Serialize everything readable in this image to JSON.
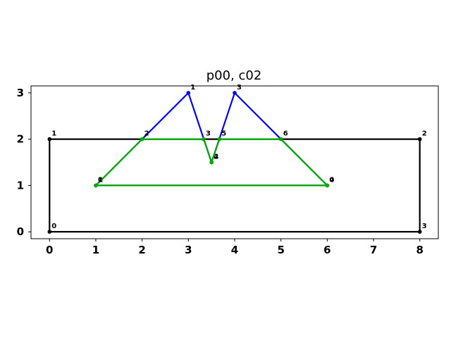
{
  "chart_data": {
    "type": "line",
    "title": "p00, c02",
    "xlabel": "",
    "ylabel": "",
    "xlim": [
      -0.4,
      8.4
    ],
    "ylim": [
      -0.15,
      3.15
    ],
    "x_ticks": [
      0,
      1,
      2,
      3,
      4,
      5,
      6,
      7,
      8
    ],
    "y_ticks": [
      0,
      1,
      2,
      3
    ],
    "grid": false,
    "series": [
      {
        "color": "#000000",
        "points": [
          [
            0,
            0
          ],
          [
            0,
            2
          ],
          [
            8,
            2
          ],
          [
            8,
            0
          ]
        ],
        "closed": true,
        "labels": [
          "0",
          "1",
          "2",
          "3"
        ]
      },
      {
        "color": "#0000ff",
        "points": [
          [
            1,
            1
          ],
          [
            3,
            3
          ],
          [
            3.5,
            1.5
          ],
          [
            4,
            3
          ],
          [
            6,
            1
          ]
        ],
        "closed": true,
        "labels": [
          "0",
          "1",
          "2",
          "3",
          "4"
        ]
      },
      {
        "color": "#00aa00",
        "points": [
          [
            1,
            1
          ],
          [
            2,
            2
          ],
          [
            3.33,
            2
          ],
          [
            3.5,
            1.5
          ],
          [
            3.67,
            2
          ],
          [
            5,
            2
          ],
          [
            6,
            1
          ]
        ],
        "closed": true,
        "labels": [
          "1",
          "2",
          "3",
          "4",
          "5",
          "6",
          "0"
        ]
      }
    ]
  }
}
